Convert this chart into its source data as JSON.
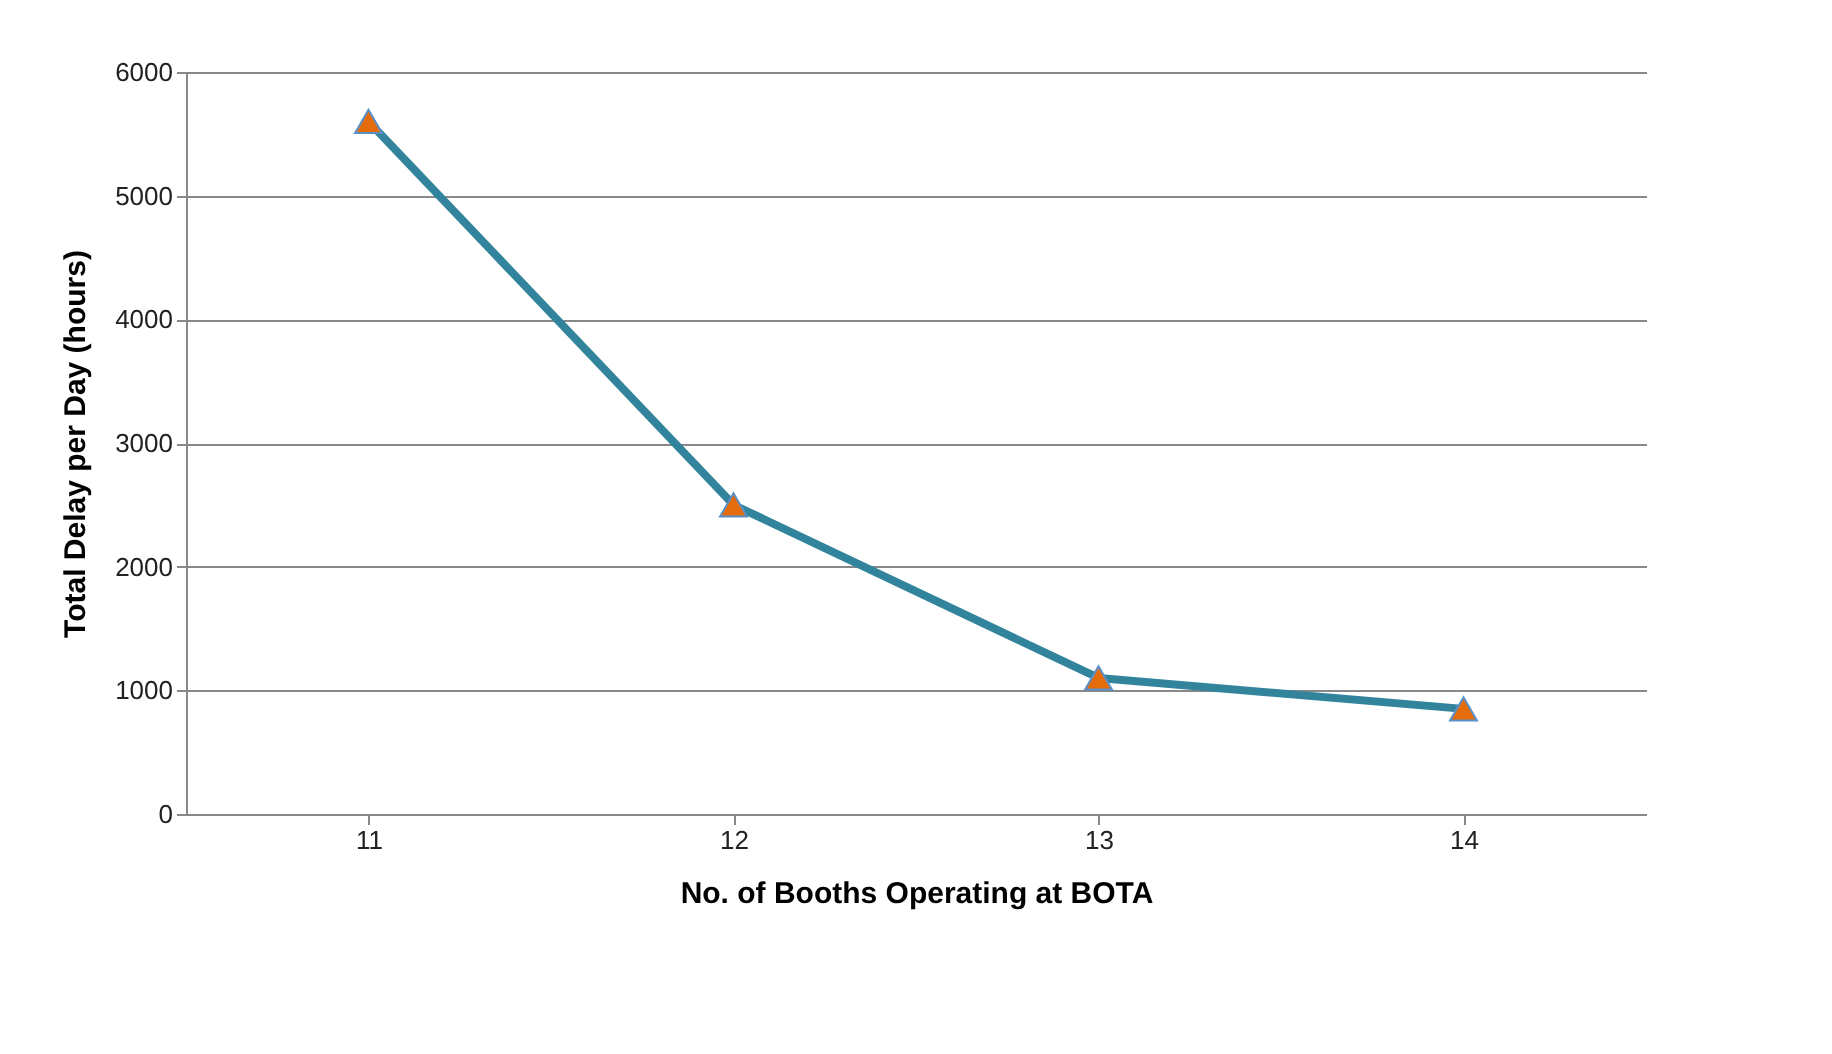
{
  "chart_data": {
    "type": "line",
    "xlabel": "No. of Booths Operating at BOTA",
    "ylabel": "Total Delay per Day (hours)",
    "categories": [
      "11",
      "12",
      "13",
      "14"
    ],
    "series": [
      {
        "color": "#31849b",
        "colors": [
          "#e46c0a",
          "#e46c0a",
          "#e46c0a",
          "#e46c0a"
        ],
        "values": [
          5600,
          2500,
          1100,
          850
        ]
      }
    ],
    "ylim": [
      0,
      6000
    ],
    "yticks": [
      0,
      1000,
      2000,
      3000,
      4000,
      5000,
      6000
    ],
    "grid": "y",
    "marker": "triangle",
    "line_style": "solid"
  }
}
